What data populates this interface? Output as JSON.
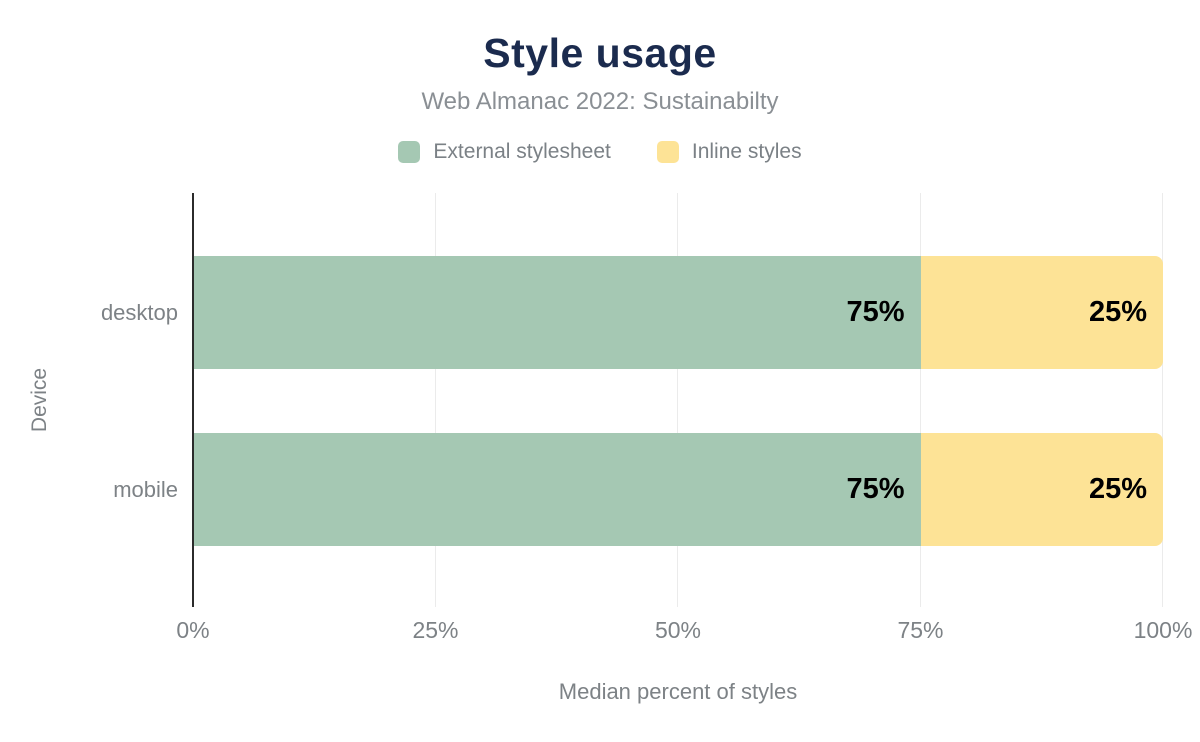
{
  "header": {
    "title": "Style usage",
    "subtitle": "Web Almanac 2022: Sustainabilty"
  },
  "chart_data": {
    "type": "bar",
    "orientation": "horizontal",
    "stacked": true,
    "title": "Style usage",
    "subtitle": "Web Almanac 2022: Sustainabilty",
    "categories": [
      "desktop",
      "mobile"
    ],
    "series": [
      {
        "name": "External stylesheet",
        "color": "#a5c8b3",
        "values": [
          75,
          75
        ]
      },
      {
        "name": "Inline styles",
        "color": "#fde396",
        "values": [
          25,
          25
        ]
      }
    ],
    "value_label_suffix": "%",
    "xlabel": "Median percent of styles",
    "ylabel": "Device",
    "xlim": [
      0,
      100
    ],
    "xticks": [
      {
        "pct": 0,
        "label": "0%"
      },
      {
        "pct": 25,
        "label": "25%"
      },
      {
        "pct": 50,
        "label": "50%"
      },
      {
        "pct": 75,
        "label": "75%"
      },
      {
        "pct": 100,
        "label": "100%"
      }
    ],
    "grid": "vertical",
    "legend_position": "top"
  },
  "colors": {
    "title_text": "#1b2b4e",
    "subtitle_text": "#8a8f94",
    "axis_text": "#7d8286",
    "legend_text": "#7b8186",
    "axis_line": "#2b2b2b",
    "gridline": "#ebebeb",
    "value_label": "#000000",
    "background": "#ffffff"
  }
}
